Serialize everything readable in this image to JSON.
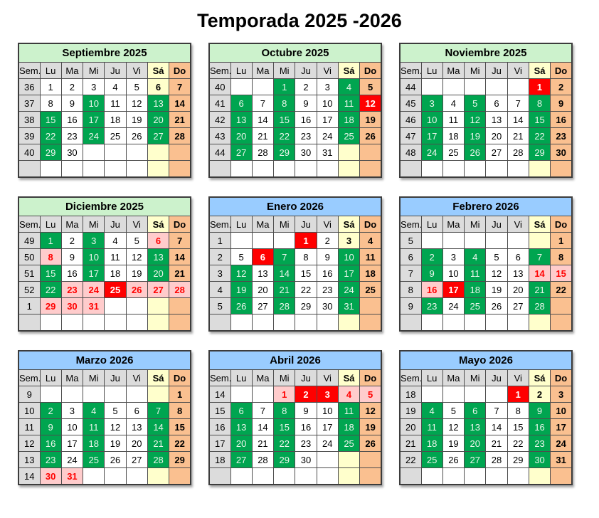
{
  "title": "Temporada 2025 -2026",
  "colors": {
    "month_header_2025": "#ccf2cc",
    "month_header_2026": "#99ccff",
    "weekday_header_gray": "#dcdcdc",
    "saturday_yellow": "#ffffcc",
    "sunday_orange": "#fac090",
    "selected_green": "#00a550",
    "holiday_red": "#ff0000",
    "holiday_pink": "#ffcccc",
    "grid_line": "#4d4d4d",
    "grid_line_dark": "#3c3c3c"
  },
  "day_headers": {
    "sem": "Sem.",
    "days": [
      "Lu",
      "Ma",
      "Mi",
      "Ju",
      "Vi",
      "Sá",
      "Do"
    ]
  },
  "style_legend": {
    "w": "white weekday",
    "g": "green selected day",
    "r": "red holiday",
    "p": "pink holiday-eve red text",
    "y": "yellow saturday",
    "o": "orange sunday"
  },
  "months": [
    {
      "name": "Septiembre 2025",
      "year": "2025",
      "rows": [
        {
          "week": "36",
          "days": [
            "1w",
            "2w",
            "3w",
            "4w",
            "5w",
            "6y",
            "7o"
          ]
        },
        {
          "week": "37",
          "days": [
            "8w",
            "9w",
            "10g",
            "11w",
            "12w",
            "13g",
            "14o"
          ]
        },
        {
          "week": "38",
          "days": [
            "15g",
            "16w",
            "17g",
            "18w",
            "19w",
            "20g",
            "21o"
          ]
        },
        {
          "week": "39",
          "days": [
            "22g",
            "23w",
            "24g",
            "25w",
            "26w",
            "27g",
            "28o"
          ]
        },
        {
          "week": "40",
          "days": [
            "29g",
            "30w",
            "w",
            "w",
            "w",
            "y",
            "o"
          ]
        },
        {
          "week": "",
          "days": [
            "w",
            "w",
            "w",
            "w",
            "w",
            "y",
            "o"
          ]
        }
      ]
    },
    {
      "name": "Octubre 2025",
      "year": "2025",
      "rows": [
        {
          "week": "40",
          "days": [
            "w",
            "w",
            "1g",
            "2w",
            "3w",
            "4g",
            "5o"
          ]
        },
        {
          "week": "41",
          "days": [
            "6g",
            "7w",
            "8g",
            "9w",
            "10w",
            "11g",
            "12r"
          ]
        },
        {
          "week": "42",
          "days": [
            "13g",
            "14w",
            "15g",
            "16w",
            "17w",
            "18g",
            "19o"
          ]
        },
        {
          "week": "43",
          "days": [
            "20g",
            "21w",
            "22g",
            "23w",
            "24w",
            "25g",
            "26o"
          ]
        },
        {
          "week": "44",
          "days": [
            "27g",
            "28w",
            "29g",
            "30w",
            "31w",
            "y",
            "o"
          ]
        },
        {
          "week": "",
          "days": [
            "w",
            "w",
            "w",
            "w",
            "w",
            "y",
            "o"
          ]
        }
      ]
    },
    {
      "name": "Noviembre 2025",
      "year": "2025",
      "rows": [
        {
          "week": "44",
          "days": [
            "w",
            "w",
            "w",
            "w",
            "w",
            "1r",
            "2o"
          ]
        },
        {
          "week": "45",
          "days": [
            "3g",
            "4w",
            "5g",
            "6w",
            "7w",
            "8g",
            "9o"
          ]
        },
        {
          "week": "46",
          "days": [
            "10g",
            "11w",
            "12g",
            "13w",
            "14w",
            "15g",
            "16o"
          ]
        },
        {
          "week": "47",
          "days": [
            "17g",
            "18w",
            "19g",
            "20w",
            "21w",
            "22g",
            "23o"
          ]
        },
        {
          "week": "48",
          "days": [
            "24g",
            "25w",
            "26g",
            "27w",
            "28w",
            "29g",
            "30o"
          ]
        },
        {
          "week": "",
          "days": [
            "w",
            "w",
            "w",
            "w",
            "w",
            "y",
            "o"
          ]
        }
      ]
    },
    {
      "name": "Diciembre 2025",
      "year": "2025",
      "rows": [
        {
          "week": "49",
          "days": [
            "1g",
            "2w",
            "3g",
            "4w",
            "5w",
            "6p",
            "7o"
          ]
        },
        {
          "week": "50",
          "days": [
            "8p",
            "9w",
            "10g",
            "11w",
            "12w",
            "13g",
            "14o"
          ]
        },
        {
          "week": "51",
          "days": [
            "15g",
            "16w",
            "17g",
            "18w",
            "19w",
            "20g",
            "21o"
          ]
        },
        {
          "week": "52",
          "days": [
            "22g",
            "23p",
            "24p",
            "25r",
            "26p",
            "27p",
            "28p"
          ]
        },
        {
          "week": "1",
          "days": [
            "29p",
            "30p",
            "31p",
            "w",
            "w",
            "y",
            "o"
          ]
        },
        {
          "week": "",
          "days": [
            "w",
            "w",
            "w",
            "w",
            "w",
            "y",
            "o"
          ]
        }
      ]
    },
    {
      "name": "Enero 2026",
      "year": "2026",
      "rows": [
        {
          "week": "1",
          "days": [
            "w",
            "w",
            "w",
            "1r",
            "2w",
            "3y",
            "4o"
          ]
        },
        {
          "week": "2",
          "days": [
            "5w",
            "6r",
            "7g",
            "8w",
            "9w",
            "10g",
            "11o"
          ]
        },
        {
          "week": "3",
          "days": [
            "12g",
            "13w",
            "14g",
            "15w",
            "16w",
            "17g",
            "18o"
          ]
        },
        {
          "week": "4",
          "days": [
            "19g",
            "20w",
            "21g",
            "22w",
            "23w",
            "24g",
            "25o"
          ]
        },
        {
          "week": "5",
          "days": [
            "26g",
            "27w",
            "28g",
            "29w",
            "30w",
            "31g",
            "o"
          ]
        },
        {
          "week": "",
          "days": [
            "w",
            "w",
            "w",
            "w",
            "w",
            "y",
            "o"
          ]
        }
      ]
    },
    {
      "name": "Febrero 2026",
      "year": "2026",
      "rows": [
        {
          "week": "5",
          "days": [
            "w",
            "w",
            "w",
            "w",
            "w",
            "y",
            "1o"
          ]
        },
        {
          "week": "6",
          "days": [
            "2g",
            "3w",
            "4g",
            "5w",
            "6w",
            "7g",
            "8o"
          ]
        },
        {
          "week": "7",
          "days": [
            "9g",
            "10w",
            "11g",
            "12w",
            "13w",
            "14p",
            "15p"
          ]
        },
        {
          "week": "8",
          "days": [
            "16p",
            "17r",
            "18g",
            "19w",
            "20w",
            "21g",
            "22o"
          ]
        },
        {
          "week": "9",
          "days": [
            "23g",
            "24w",
            "25g",
            "26w",
            "27w",
            "28g",
            "o"
          ]
        },
        {
          "week": "",
          "days": [
            "w",
            "w",
            "w",
            "w",
            "w",
            "y",
            "o"
          ]
        }
      ]
    },
    {
      "name": "Marzo 2026",
      "year": "2026",
      "rows": [
        {
          "week": "9",
          "days": [
            "w",
            "w",
            "w",
            "w",
            "w",
            "y",
            "1o"
          ]
        },
        {
          "week": "10",
          "days": [
            "2g",
            "3w",
            "4g",
            "5w",
            "6w",
            "7g",
            "8o"
          ]
        },
        {
          "week": "11",
          "days": [
            "9g",
            "10w",
            "11g",
            "12w",
            "13w",
            "14g",
            "15o"
          ]
        },
        {
          "week": "12",
          "days": [
            "16g",
            "17w",
            "18g",
            "19w",
            "20w",
            "21g",
            "22o"
          ]
        },
        {
          "week": "13",
          "days": [
            "23g",
            "24w",
            "25g",
            "26w",
            "27w",
            "28g",
            "29o"
          ]
        },
        {
          "week": "14",
          "days": [
            "30p",
            "31p",
            "w",
            "w",
            "w",
            "y",
            "o"
          ]
        }
      ]
    },
    {
      "name": "Abril 2026",
      "year": "2026",
      "rows": [
        {
          "week": "14",
          "days": [
            "w",
            "w",
            "1p",
            "2r",
            "3r",
            "4p",
            "5p"
          ]
        },
        {
          "week": "15",
          "days": [
            "6g",
            "7w",
            "8g",
            "9w",
            "10w",
            "11g",
            "12o"
          ]
        },
        {
          "week": "16",
          "days": [
            "13g",
            "14w",
            "15g",
            "16w",
            "17w",
            "18g",
            "19o"
          ]
        },
        {
          "week": "17",
          "days": [
            "20g",
            "21w",
            "22g",
            "23w",
            "24w",
            "25g",
            "26o"
          ]
        },
        {
          "week": "18",
          "days": [
            "27g",
            "28w",
            "29g",
            "30w",
            "w",
            "y",
            "o"
          ]
        },
        {
          "week": "",
          "days": [
            "w",
            "w",
            "w",
            "w",
            "w",
            "y",
            "o"
          ]
        }
      ]
    },
    {
      "name": "Mayo 2026",
      "year": "2026",
      "rows": [
        {
          "week": "18",
          "days": [
            "w",
            "w",
            "w",
            "w",
            "1r",
            "2y",
            "3o"
          ]
        },
        {
          "week": "19",
          "days": [
            "4g",
            "5w",
            "6g",
            "7w",
            "8w",
            "9g",
            "10o"
          ]
        },
        {
          "week": "20",
          "days": [
            "11g",
            "12w",
            "13g",
            "14w",
            "15w",
            "16g",
            "17o"
          ]
        },
        {
          "week": "21",
          "days": [
            "18g",
            "19w",
            "20g",
            "21w",
            "22w",
            "23g",
            "24o"
          ]
        },
        {
          "week": "22",
          "days": [
            "25g",
            "26w",
            "27g",
            "28w",
            "29w",
            "30g",
            "31o"
          ]
        },
        {
          "week": "",
          "days": [
            "w",
            "w",
            "w",
            "w",
            "w",
            "y",
            "o"
          ]
        }
      ]
    }
  ]
}
